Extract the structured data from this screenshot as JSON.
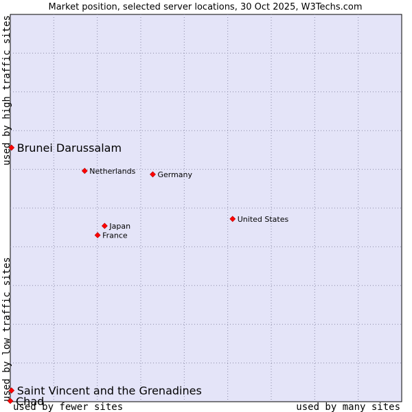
{
  "chart_data": {
    "type": "scatter",
    "title": "Market position, selected server locations, 30 Oct 2025, W3Techs.com",
    "x_axis": {
      "low_label": "used by fewer sites",
      "high_label": "used by many sites",
      "range": [
        0,
        100
      ]
    },
    "y_axis": {
      "low_label": "used by low traffic sites",
      "high_label": "used by high traffic sites",
      "range": [
        0,
        100
      ]
    },
    "grid": true,
    "background_color": "#e4e4f8",
    "point_color": "#ff0000",
    "points": [
      {
        "name": "Brunei Darussalam",
        "x": 0.3,
        "y": 65.6,
        "emphasis": true
      },
      {
        "name": "Netherlands",
        "x": 19.0,
        "y": 59.6,
        "emphasis": false
      },
      {
        "name": "Germany",
        "x": 36.4,
        "y": 58.7,
        "emphasis": false
      },
      {
        "name": "United States",
        "x": 56.8,
        "y": 47.2,
        "emphasis": false
      },
      {
        "name": "Japan",
        "x": 24.1,
        "y": 45.4,
        "emphasis": false
      },
      {
        "name": "France",
        "x": 22.3,
        "y": 43.0,
        "emphasis": false
      },
      {
        "name": "Saint Vincent and the Grenadines",
        "x": 0.3,
        "y": 2.9,
        "emphasis": true
      },
      {
        "name": "Chad",
        "x": 0.0,
        "y": 0.2,
        "emphasis": true
      }
    ]
  }
}
